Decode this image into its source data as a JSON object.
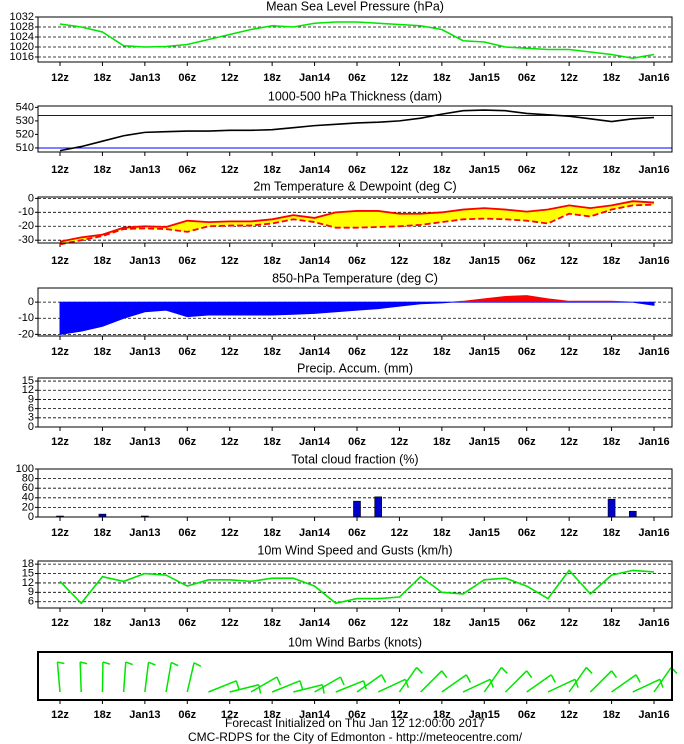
{
  "chart_data": [
    {
      "type": "line",
      "title": "Mean Sea Level Pressure (hPa)",
      "categories": [
        "12z",
        null,
        "18z",
        null,
        "Jan13",
        null,
        "06z",
        null,
        "12z",
        null,
        "18z",
        null,
        "Jan14",
        null,
        "06z",
        null,
        "12z",
        null,
        "18z",
        null,
        "Jan15",
        null,
        "06z",
        null,
        "12z",
        null,
        "18z",
        null,
        "Jan16"
      ],
      "series": [
        {
          "color": "#00e600",
          "values": [
            1029.2,
            1028,
            1026,
            1020.5,
            1020,
            1020.2,
            1021,
            1023,
            1025,
            1027,
            1028.5,
            1028,
            1029.5,
            1030,
            1030,
            1029.5,
            1029,
            1028.5,
            1027,
            1022.5,
            1022,
            1020,
            1019.5,
            1019,
            1019,
            1018,
            1017,
            1015.5,
            1017
          ]
        }
      ],
      "ylim": [
        1014,
        1032
      ],
      "yticks": [
        1016,
        1020,
        1024,
        1028,
        1032
      ],
      "grid": true
    },
    {
      "type": "line",
      "title": "1000-500 hPa Thickness (dam)",
      "categories": [
        "12z",
        null,
        "18z",
        null,
        "Jan13",
        null,
        "06z",
        null,
        "12z",
        null,
        "18z",
        null,
        "Jan14",
        null,
        "06z",
        null,
        "12z",
        null,
        "18z",
        null,
        "Jan15",
        null,
        "06z",
        null,
        "12z",
        null,
        "18z",
        null,
        "Jan16"
      ],
      "series": [
        {
          "color": "#000000",
          "values": [
            508,
            511,
            515,
            519,
            521.5,
            522,
            522.5,
            522.5,
            523,
            523,
            523.5,
            525,
            526.5,
            527.5,
            528.5,
            529,
            530,
            532,
            535,
            537.5,
            538,
            537.5,
            535.5,
            534.5,
            533.5,
            531.5,
            529.5,
            531.5,
            532.5
          ]
        }
      ],
      "hlines": [
        534,
        510
      ],
      "hline_color": "#0000ff",
      "ylim": [
        507,
        541
      ],
      "yticks": [
        510,
        520,
        530,
        540
      ],
      "grid": false
    },
    {
      "type": "band",
      "title": "2m Temperature & Dewpoint (deg C)",
      "categories": [
        "12z",
        null,
        "18z",
        null,
        "Jan13",
        null,
        "06z",
        null,
        "12z",
        null,
        "18z",
        null,
        "Jan14",
        null,
        "06z",
        null,
        "12z",
        null,
        "18z",
        null,
        "Jan15",
        null,
        "06z",
        null,
        "12z",
        null,
        "18z",
        null,
        "Jan16"
      ],
      "series": [
        {
          "color": "#ff0000",
          "style": "solid",
          "values": [
            -31,
            -28,
            -26,
            -21,
            -20,
            -20.5,
            -16,
            -17,
            -16.5,
            -16.5,
            -15,
            -12,
            -14,
            -10,
            -9,
            -9,
            -11,
            -11,
            -10,
            -8,
            -7,
            -8,
            -9.5,
            -8,
            -5,
            -7,
            -5,
            -2,
            -3
          ]
        },
        {
          "color": "#ff0000",
          "style": "dashed",
          "values": [
            -33,
            -30,
            -27,
            -22,
            -21.5,
            -22,
            -24,
            -20,
            -19.5,
            -19.5,
            -18,
            -15,
            -17,
            -21,
            -21,
            -20.5,
            -20,
            -19,
            -17,
            -15,
            -14.5,
            -15,
            -16,
            -18,
            -11,
            -13,
            -8,
            -5,
            -4.5
          ]
        }
      ],
      "fill_color": "#ffff00",
      "ylim": [
        -32,
        1
      ],
      "yticks": [
        0,
        -10,
        -20,
        -30
      ],
      "grid": true
    },
    {
      "type": "area",
      "title": "850-hPa Temperature (deg C)",
      "categories": [
        "12z",
        null,
        "18z",
        null,
        "Jan13",
        null,
        "06z",
        null,
        "12z",
        null,
        "18z",
        null,
        "Jan14",
        null,
        "06z",
        null,
        "12z",
        null,
        "18z",
        null,
        "Jan15",
        null,
        "06z",
        null,
        "12z",
        null,
        "18z",
        null,
        "Jan16"
      ],
      "values": [
        -20,
        -18,
        -15,
        -10,
        -6,
        -5,
        -9,
        -8,
        -8,
        -8,
        -8,
        -7.5,
        -7,
        -6,
        -5,
        -4,
        -2.5,
        -1,
        -0.5,
        0.5,
        2,
        3.5,
        4,
        2,
        0.5,
        0.5,
        0.5,
        0,
        -2
      ],
      "pos_color": "#ff0000",
      "neg_color": "#0000ff",
      "ylim": [
        -21,
        8.75
      ],
      "yticks": [
        0,
        -10,
        -20
      ],
      "grid": true
    },
    {
      "type": "line",
      "title": "Precip. Accum. (mm)",
      "categories": [
        "12z",
        null,
        "18z",
        null,
        "Jan13",
        null,
        "06z",
        null,
        "12z",
        null,
        "18z",
        null,
        "Jan14",
        null,
        "06z",
        null,
        "12z",
        null,
        "18z",
        null,
        "Jan15",
        null,
        "06z",
        null,
        "12z",
        null,
        "18z",
        null,
        "Jan16"
      ],
      "ylim": [
        0,
        16
      ],
      "yticks": [
        0,
        3,
        6,
        9,
        12,
        15
      ],
      "grid": true
    },
    {
      "type": "bar",
      "title": "Total cloud fraction (%)",
      "categories": [
        "12z",
        null,
        "18z",
        null,
        "Jan13",
        null,
        "06z",
        null,
        "12z",
        null,
        "18z",
        null,
        "Jan14",
        null,
        "06z",
        null,
        "12z",
        null,
        "18z",
        null,
        "Jan15",
        null,
        "06z",
        null,
        "12z",
        null,
        "18z",
        null,
        "Jan16"
      ],
      "values": [
        2,
        0,
        6,
        0,
        2,
        0,
        0,
        0,
        0,
        0,
        0,
        0,
        0,
        0,
        33,
        42,
        0,
        0,
        0,
        0,
        0,
        0,
        0,
        0,
        0,
        0,
        37,
        12,
        0
      ],
      "color": "#0000cc",
      "ylim": [
        0,
        100
      ],
      "yticks": [
        0,
        20,
        40,
        60,
        80,
        100
      ],
      "grid": true
    },
    {
      "type": "line",
      "title": "10m Wind Speed and Gusts (km/h)",
      "categories": [
        "12z",
        null,
        "18z",
        null,
        "Jan13",
        null,
        "06z",
        null,
        "12z",
        null,
        "18z",
        null,
        "Jan14",
        null,
        "06z",
        null,
        "12z",
        null,
        "18z",
        null,
        "Jan15",
        null,
        "06z",
        null,
        "12z",
        null,
        "18z",
        null,
        "Jan16"
      ],
      "series": [
        {
          "color": "#00e600",
          "values": [
            12.5,
            5.5,
            14,
            12.5,
            15,
            14.5,
            11,
            13,
            13,
            12.5,
            13.5,
            13.5,
            11,
            5.5,
            7,
            7,
            7.5,
            14,
            9,
            8.5,
            13,
            13.5,
            11,
            7,
            16,
            8.5,
            14.5,
            16,
            15.5
          ]
        }
      ],
      "ylim": [
        4,
        19
      ],
      "yticks": [
        6,
        9,
        12,
        15,
        18
      ],
      "grid": true
    },
    {
      "type": "barbs",
      "title": "10m Wind Barbs  (knots)",
      "categories": [
        "12z",
        null,
        "18z",
        null,
        "Jan13",
        null,
        "06z",
        null,
        "12z",
        null,
        "18z",
        null,
        "Jan14",
        null,
        "06z",
        null,
        "12z",
        null,
        "18z",
        null,
        "Jan15",
        null,
        "06z",
        null,
        "12z",
        null,
        "18z",
        null,
        "Jan16"
      ],
      "color": "#00e600"
    }
  ],
  "footer": [
    "Forecast Initialized on Thu Jan 12 12:00:00 2017",
    "CMC-RDPS for the City of Edmonton - http://meteocentre.com/"
  ]
}
